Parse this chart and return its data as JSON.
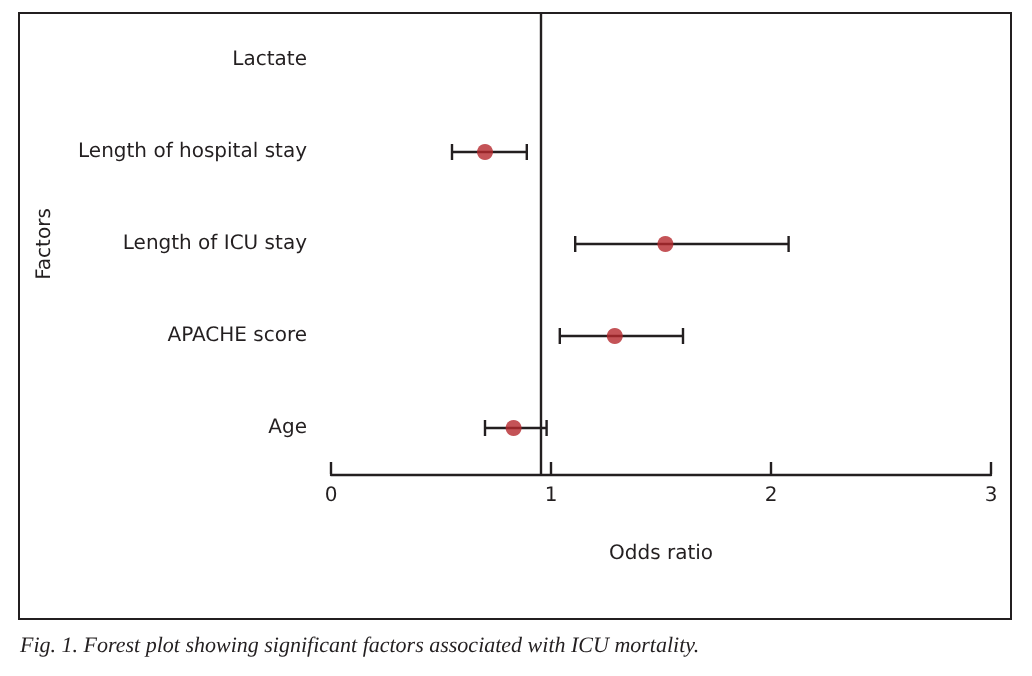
{
  "chart_data": {
    "type": "scatter",
    "orientation": "horizontal",
    "xlabel": "Odds ratio",
    "ylabel": "Factors",
    "categories": [
      "Lactate",
      "Length of hospital stay",
      "Length of ICU stay",
      "APACHE score",
      "Age"
    ],
    "values": [
      null,
      0.7,
      1.52,
      1.29,
      0.83
    ],
    "errors": [
      null,
      [
        0.55,
        0.89
      ],
      [
        1.11,
        2.08
      ],
      [
        1.04,
        1.6
      ],
      [
        0.7,
        0.98
      ]
    ],
    "color": "#b5282d",
    "marker": "circle",
    "grid": false,
    "xlim": [
      0,
      3
    ],
    "xticks": [
      0,
      1,
      2,
      3
    ],
    "ref_lines": [
      {
        "axis": "x",
        "value": 0.95,
        "color": "#231f20"
      }
    ],
    "annotations": [
      "Fig. 1. Forest plot showing significant factors associated with ICU mortality."
    ]
  }
}
